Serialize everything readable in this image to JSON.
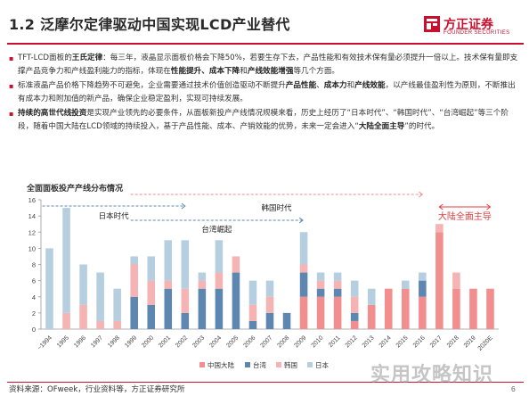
{
  "header": {
    "title": "1.2 泛摩尔定律驱动中国实现LCD产业替代",
    "logo_cn": "方正证券",
    "logo_en": "FOUNDER SECURITIES"
  },
  "bullets": [
    {
      "runs": [
        {
          "t": "TFT-LCD面板的",
          "b": false
        },
        {
          "t": "王氏定律",
          "b": true
        },
        {
          "t": "：每三年，液晶显示面板价格会下降50%，若要生存下去，产品性能和有效技术保有量必须提升一倍以上。技术保有量即支撑产品竞争力和产线盈利能力的指标，体现在",
          "b": false
        },
        {
          "t": "性能提升、成本下降",
          "b": true
        },
        {
          "t": "和",
          "b": false
        },
        {
          "t": "产线效能增强",
          "b": true
        },
        {
          "t": "等几个方面。",
          "b": false
        }
      ]
    },
    {
      "runs": [
        {
          "t": "标准液晶产品价格下降趋势不可避免，企业需要通过技术价值创造驱动不断提升",
          "b": false
        },
        {
          "t": "产品性能",
          "b": true
        },
        {
          "t": "、",
          "b": false
        },
        {
          "t": "成本力",
          "b": true
        },
        {
          "t": "和",
          "b": false
        },
        {
          "t": "产线效能",
          "b": true
        },
        {
          "t": "，以产线最佳盈利性为原则，不断推出有成本力和附加值的新产品，确保企业稳定盈利，实现可持续发展。",
          "b": false
        }
      ]
    },
    {
      "runs": [
        {
          "t": "持续的高世代线投资",
          "b": true
        },
        {
          "t": "是实现产业领先的必要条件，从面板新投产产线情况规模来看，历史上经历了“日本时代”、“韩国时代”、“台湾崛起”等三个阶段，随着中国大陆在LCD领域的持续投入，基于产品性能、成本、产销效能的优势，未来一定会进入“",
          "b": false
        },
        {
          "t": "大陆全面主导",
          "b": true
        },
        {
          "t": "”的时代。",
          "b": false
        }
      ]
    }
  ],
  "chart_title": "全面面板投产产线分布情况",
  "footer": {
    "source": "资料来源：OFweek，行业资料等，方正证券研究所",
    "page": "6",
    "watermark": "实用攻略知识"
  },
  "chart_data": {
    "type": "bar",
    "stacked": true,
    "categories": [
      "~1994",
      "1995",
      "1996",
      "1997",
      "1998",
      "1999",
      "2000",
      "2001",
      "2002",
      "2003",
      "2004",
      "2005",
      "2006",
      "2007",
      "2008",
      "2009",
      "2010",
      "2011",
      "2012",
      "2013",
      "2014",
      "2015",
      "2016",
      "2017",
      "2018",
      "2019",
      "2020E"
    ],
    "series": [
      {
        "name": "中国大陆",
        "color": "#f28e8e",
        "values": [
          0,
          0,
          0,
          0,
          0,
          0,
          0,
          0,
          0,
          0,
          0,
          0,
          0,
          0,
          0,
          4,
          4,
          4,
          1,
          3,
          5,
          5,
          4,
          12,
          5,
          5,
          5
        ]
      },
      {
        "name": "台湾",
        "color": "#5d87b0",
        "values": [
          0,
          0,
          0,
          0,
          0,
          4,
          3,
          5,
          2,
          5,
          5,
          7,
          1,
          2,
          2,
          3,
          1,
          1,
          1,
          0,
          0,
          0,
          2,
          0,
          0,
          0,
          0
        ]
      },
      {
        "name": "韩国",
        "color": "#f6b3b3",
        "values": [
          0,
          2,
          3,
          1,
          1,
          4,
          3,
          1,
          3,
          1,
          2,
          2,
          2,
          2,
          0,
          1,
          1,
          1,
          2,
          0,
          0,
          0,
          0,
          1,
          2,
          0,
          0
        ]
      },
      {
        "name": "日本",
        "color": "#b6cfe0",
        "values": [
          10,
          13,
          5,
          6,
          4,
          1,
          3,
          5,
          6,
          1,
          4,
          0,
          3,
          2,
          0,
          4,
          1,
          1,
          2,
          2,
          0,
          1,
          1,
          0,
          0,
          0,
          0
        ]
      }
    ],
    "ylim": [
      0,
      16
    ],
    "yticks": [
      0,
      2,
      4,
      6,
      8,
      10,
      12,
      14,
      16
    ],
    "grid": false,
    "legend": "bottom",
    "annotations": [
      {
        "text": "日本时代",
        "from": "~1994",
        "to": "2002"
      },
      {
        "text": "韩国时代",
        "from": "1999",
        "to": "2016"
      },
      {
        "text": "台湾崛起",
        "from": "1999",
        "to": "2008"
      },
      {
        "text": "大陆全面主导",
        "from": "2017",
        "to": "2020E"
      }
    ]
  }
}
